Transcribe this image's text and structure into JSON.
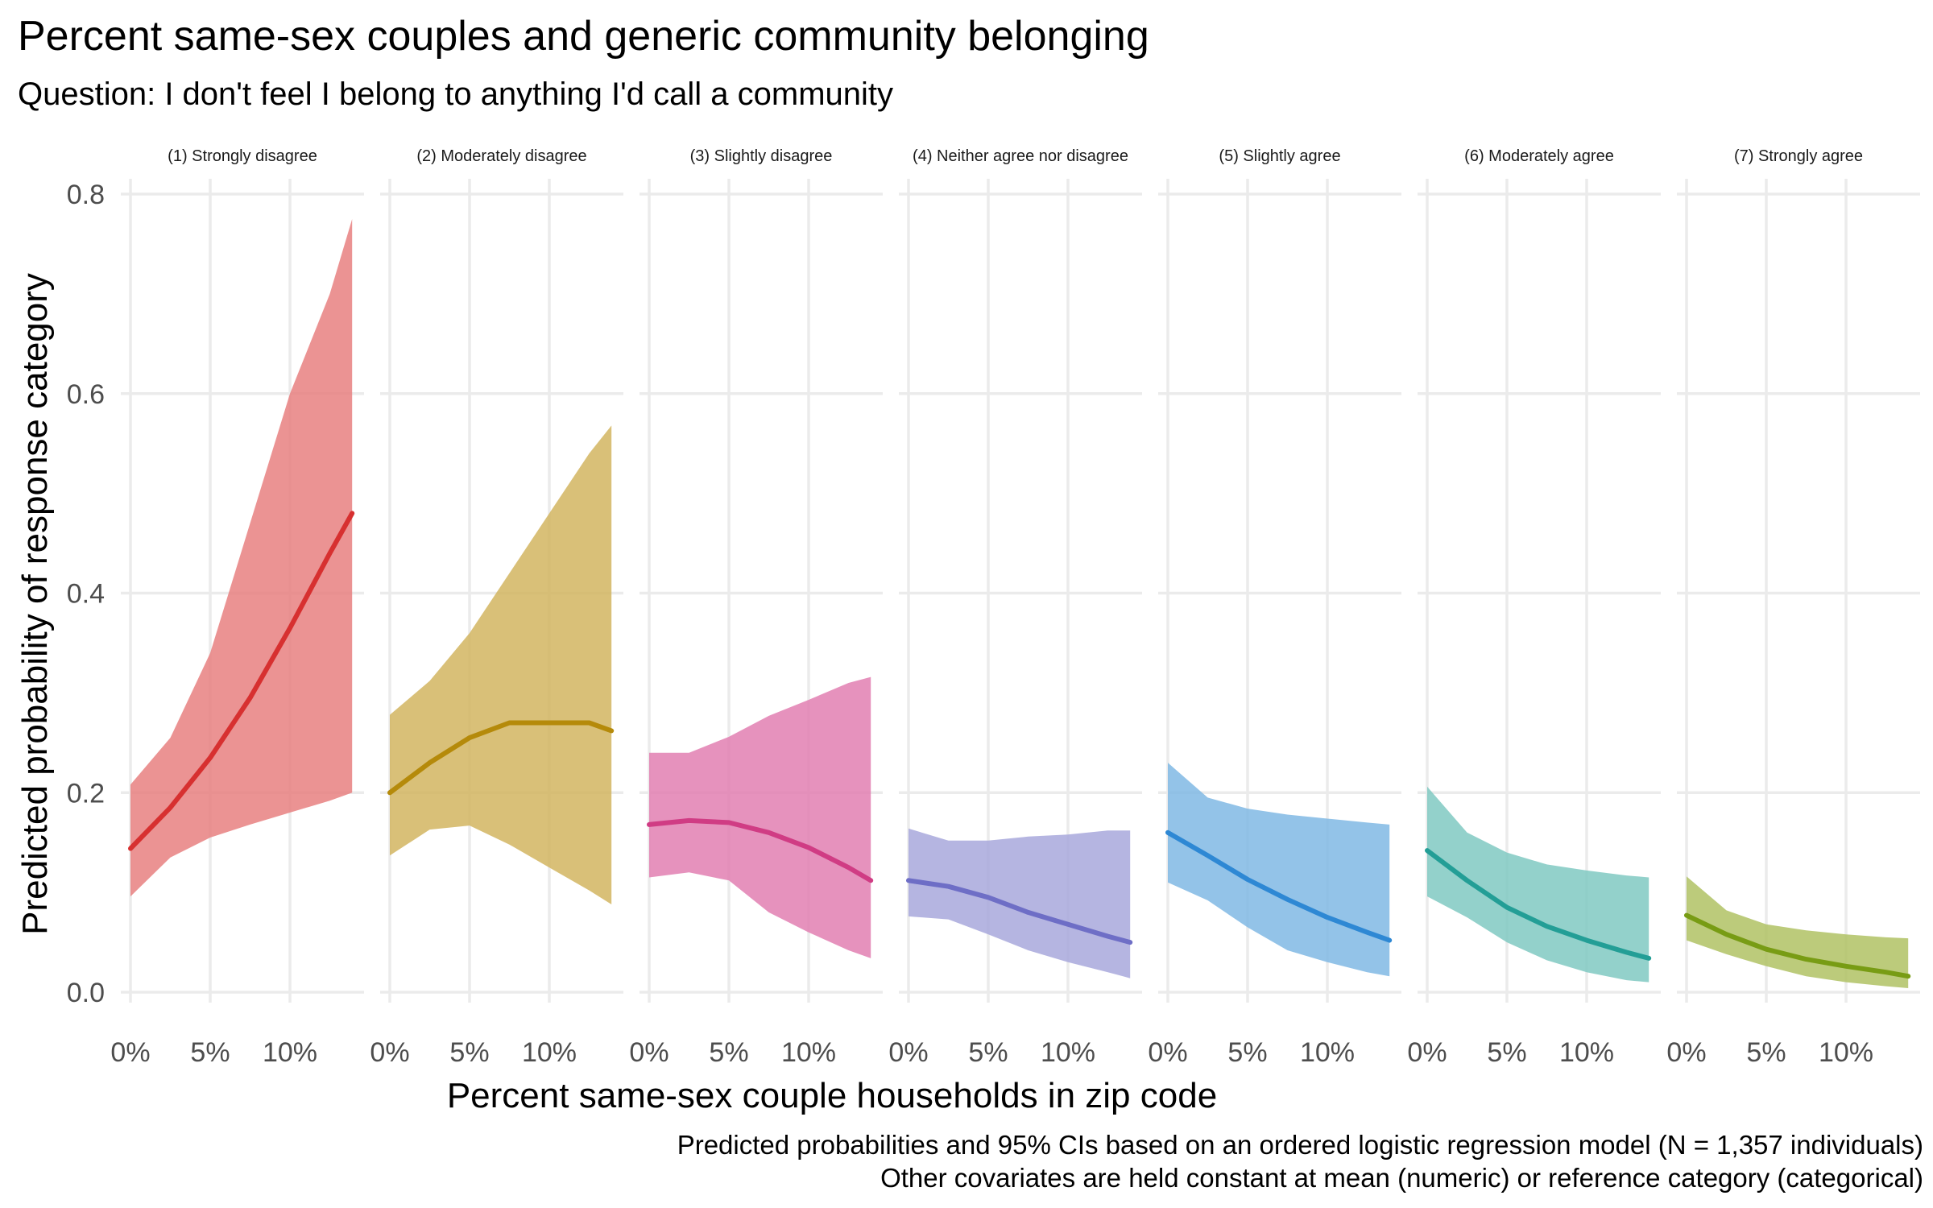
{
  "chart_data": {
    "type": "line",
    "title": "Percent same-sex couples and generic community belonging",
    "subtitle": "Question: I don't feel I belong to anything I'd call a community",
    "xlabel": "Percent same-sex couple households in zip code",
    "ylabel": "Predicted probability of response category",
    "caption_lines": [
      "Predicted probabilities and 95% CIs based on an ordered logistic regression model (N = 1,357 individuals)",
      "Other covariates are held constant at mean (numeric) or reference category (categorical)"
    ],
    "x_ticks": [
      0,
      5,
      10
    ],
    "x_tick_labels": [
      "0%",
      "5%",
      "10%"
    ],
    "xlim": [
      0,
      13.9
    ],
    "y_ticks": [
      0,
      0.2,
      0.4,
      0.6,
      0.8
    ],
    "y_tick_labels": [
      "0.0",
      "0.2",
      "0.4",
      "0.6",
      "0.8"
    ],
    "ylim": [
      0,
      0.8
    ],
    "grid": true,
    "x": [
      0,
      2.5,
      5,
      7.5,
      10,
      12.5,
      13.9
    ],
    "series": [
      {
        "name": "(1) Strongly disagree",
        "color": "#d73030",
        "fill": "#e88080",
        "values": [
          0.144,
          0.185,
          0.235,
          0.295,
          0.365,
          0.44,
          0.48
        ],
        "lower": [
          0.096,
          0.135,
          0.155,
          0.168,
          0.18,
          0.192,
          0.2
        ],
        "upper": [
          0.208,
          0.255,
          0.34,
          0.47,
          0.6,
          0.7,
          0.775
        ]
      },
      {
        "name": "(2) Moderately disagree",
        "color": "#b58a0a",
        "fill": "#d2b560",
        "values": [
          0.2,
          0.23,
          0.255,
          0.27,
          0.27,
          0.27,
          0.262
        ],
        "lower": [
          0.137,
          0.163,
          0.167,
          0.148,
          0.125,
          0.102,
          0.088
        ],
        "upper": [
          0.278,
          0.312,
          0.36,
          0.42,
          0.48,
          0.54,
          0.568
        ]
      },
      {
        "name": "(3) Slightly disagree",
        "color": "#d03c84",
        "fill": "#e27fb2",
        "values": [
          0.168,
          0.172,
          0.17,
          0.16,
          0.145,
          0.125,
          0.112
        ],
        "lower": [
          0.115,
          0.12,
          0.112,
          0.08,
          0.06,
          0.042,
          0.034
        ],
        "upper": [
          0.24,
          0.24,
          0.256,
          0.277,
          0.293,
          0.31,
          0.316
        ]
      },
      {
        "name": "(4) Neither agree nor disagree",
        "color": "#6e6ec6",
        "fill": "#a8a8dc",
        "values": [
          0.112,
          0.106,
          0.095,
          0.08,
          0.068,
          0.056,
          0.05
        ],
        "lower": [
          0.076,
          0.073,
          0.058,
          0.042,
          0.03,
          0.02,
          0.014
        ],
        "upper": [
          0.164,
          0.152,
          0.152,
          0.156,
          0.158,
          0.162,
          0.162
        ]
      },
      {
        "name": "(5) Slightly agree",
        "color": "#2e88d4",
        "fill": "#80b8e4",
        "values": [
          0.16,
          0.137,
          0.113,
          0.093,
          0.075,
          0.06,
          0.052
        ],
        "lower": [
          0.11,
          0.092,
          0.065,
          0.042,
          0.03,
          0.02,
          0.016
        ],
        "upper": [
          0.23,
          0.195,
          0.184,
          0.178,
          0.174,
          0.17,
          0.168
        ]
      },
      {
        "name": "(6) Moderately agree",
        "color": "#239e96",
        "fill": "#80c9c2",
        "values": [
          0.142,
          0.112,
          0.085,
          0.066,
          0.052,
          0.04,
          0.034
        ],
        "lower": [
          0.096,
          0.075,
          0.05,
          0.032,
          0.02,
          0.012,
          0.01
        ],
        "upper": [
          0.206,
          0.16,
          0.14,
          0.128,
          0.122,
          0.117,
          0.115
        ]
      },
      {
        "name": "(7) Strongly agree",
        "color": "#789c14",
        "fill": "#b0c264",
        "values": [
          0.077,
          0.058,
          0.043,
          0.033,
          0.026,
          0.02,
          0.016
        ],
        "lower": [
          0.052,
          0.038,
          0.026,
          0.016,
          0.01,
          0.006,
          0.004
        ],
        "upper": [
          0.116,
          0.082,
          0.068,
          0.062,
          0.058,
          0.055,
          0.054
        ]
      }
    ]
  }
}
